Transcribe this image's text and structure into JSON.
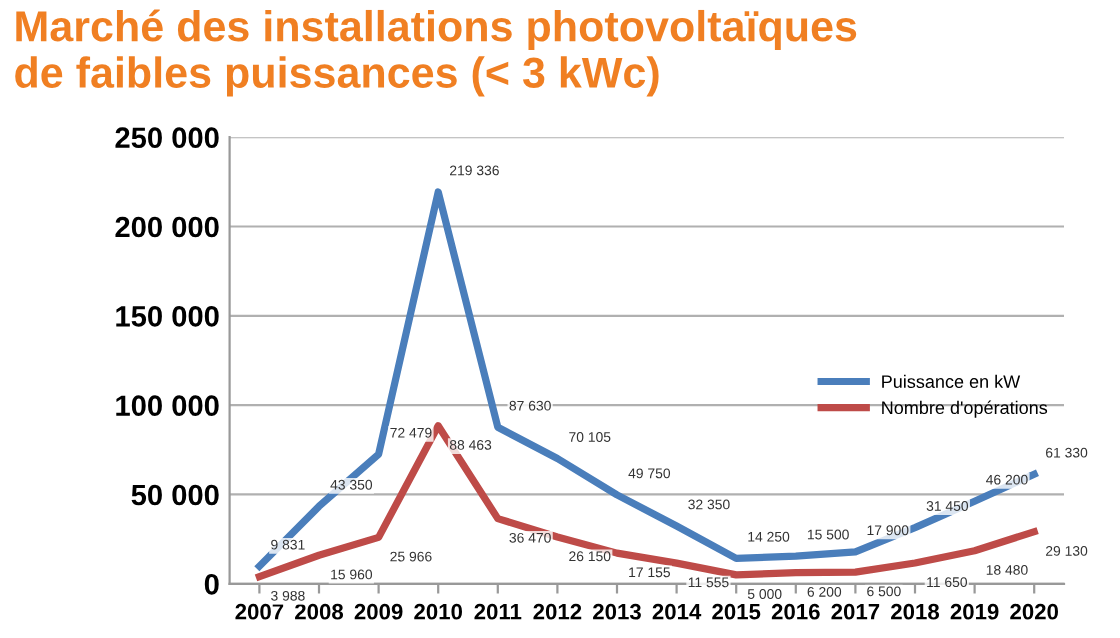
{
  "chart_data": {
    "type": "line",
    "title": "Marché des installations photovoltaïques\nde faibles puissances (< 3 kWc)",
    "categories": [
      "2007",
      "2008",
      "2009",
      "2010",
      "2011",
      "2012",
      "2013",
      "2014",
      "2015",
      "2016",
      "2017",
      "2018",
      "2019",
      "2020"
    ],
    "series": [
      {
        "name": "Puissance en kW",
        "color": "#4a7ebb",
        "values": [
          9831,
          43350,
          72479,
          219336,
          87630,
          70105,
          49750,
          32350,
          14250,
          15500,
          17900,
          31450,
          46200,
          61330
        ],
        "value_labels": [
          "9 831",
          "43 350",
          "72 479",
          "219 336",
          "87 630",
          "70 105",
          "49 750",
          "32 350",
          "14 250",
          "15 500",
          "17 900",
          "31 450",
          "46 200",
          "61 330"
        ]
      },
      {
        "name": "Nombre d'opérations",
        "color": "#be4b48",
        "values": [
          3988,
          15960,
          25966,
          88463,
          36470,
          26150,
          17155,
          11555,
          5000,
          6200,
          6500,
          11650,
          18480,
          29130
        ],
        "value_labels": [
          "3 988",
          "15 960",
          "25 966",
          "88 463",
          "36 470",
          "26 150",
          "17 155",
          "11 555",
          "5 000",
          "6 200",
          "6 500",
          "11 650",
          "18 480",
          "29 130"
        ]
      }
    ],
    "ylim": [
      0,
      250000
    ],
    "yticks": [
      0,
      {
        "value": 50000,
        "label": "50 000"
      },
      {
        "value": 100000,
        "label": "100 000"
      },
      {
        "value": 150000,
        "label": "150 000"
      },
      {
        "value": 200000,
        "label": "200 000"
      },
      {
        "value": 250000,
        "label": "250 000"
      }
    ],
    "grid": "y",
    "legend": "right",
    "marker": "none",
    "line_style": "solid"
  }
}
